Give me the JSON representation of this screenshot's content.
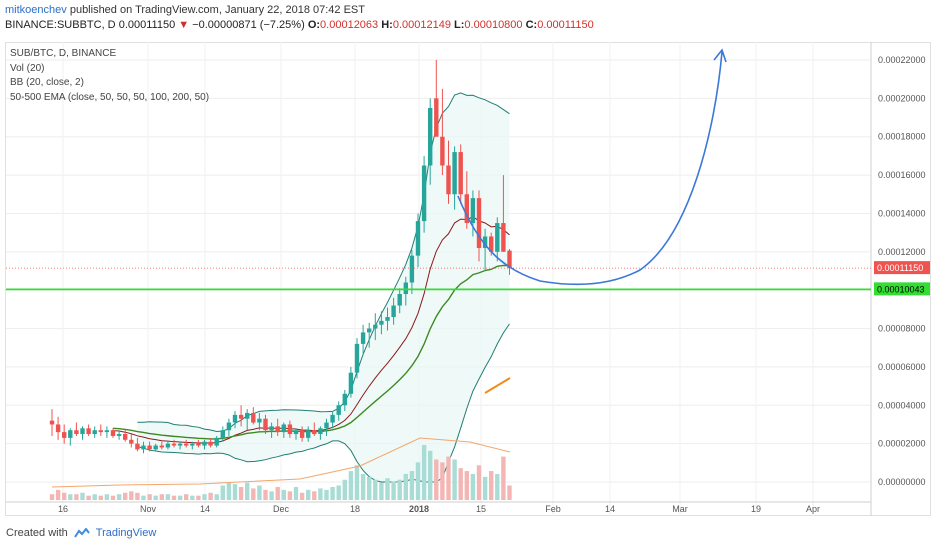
{
  "header": {
    "author": "mitkoenchev",
    "published_text": "published on TradingView.com, January 22, 2018 07:42 EST",
    "symbol": "BINANCE:SUBBTC, D",
    "last": "0.00011150",
    "change_arrow": "▼",
    "change": "−0.00000871 (−7.25%)",
    "open_label": "O:",
    "open": "0.00012063",
    "high_label": "H:",
    "high": "0.00012149",
    "low_label": "L:",
    "low": "0.00010800",
    "close_label": "C:",
    "close": "0.00011150"
  },
  "legend": {
    "l1": "SUB/BTC, D, BINANCE",
    "l2": "Vol (20)",
    "l3": "BB (20, close, 2)",
    "l4": "50-500 EMA (close, 50, 50, 50, 100, 200, 50)"
  },
  "price_badges": {
    "current": "0.00011150",
    "support": "0.00010043"
  },
  "footer": {
    "created_with": "Created with",
    "brand": "TradingView"
  },
  "colors": {
    "up": "#26a69a",
    "down": "#ef5350",
    "support_line": "#33dd33",
    "forecast_arrow": "#3c78d8",
    "current_price": "#ef5350"
  },
  "chart_data": {
    "type": "candlestick",
    "symbol": "SUB/BTC",
    "y_axis": {
      "min": 0.0,
      "max": 0.00022,
      "ticks": [
        "0.00022000",
        "0.00020000",
        "0.00018000",
        "0.00016000",
        "0.00014000",
        "0.00012000",
        "0.00010000",
        "0.00008000",
        "0.00006000",
        "0.00004000",
        "0.00002000",
        "0.00000000"
      ],
      "tick_values": [
        0.00022,
        0.0002,
        0.00018,
        0.00016,
        0.00014,
        0.00012,
        0.0001,
        8e-05,
        6e-05,
        4e-05,
        2e-05,
        0.0
      ]
    },
    "x_ticks": [
      "16",
      "Nov",
      "14",
      "Dec",
      "18",
      "2018",
      "15",
      "Feb",
      "14",
      "Mar",
      "19",
      "Apr"
    ],
    "support_level": 0.00010043,
    "current_price": 0.0001115,
    "candles": [
      [
        3.2e-05,
        3.8e-05,
        2.4e-05,
        3e-05
      ],
      [
        3e-05,
        3.4e-05,
        2.2e-05,
        2.6e-05
      ],
      [
        2.6e-05,
        3e-05,
        2e-05,
        2.3e-05
      ],
      [
        2.3e-05,
        2.8e-05,
        1.9e-05,
        2.7e-05
      ],
      [
        2.7e-05,
        3.1e-05,
        2.4e-05,
        2.5e-05
      ],
      [
        2.5e-05,
        2.9e-05,
        2.2e-05,
        2.8e-05
      ],
      [
        2.8e-05,
        3e-05,
        2.4e-05,
        2.5e-05
      ],
      [
        2.5e-05,
        2.9e-05,
        2.3e-05,
        2.7e-05
      ],
      [
        2.7e-05,
        3e-05,
        2.4e-05,
        2.6e-05
      ],
      [
        2.6e-05,
        2.9e-05,
        2.3e-05,
        2.7e-05
      ],
      [
        2.7e-05,
        2.8e-05,
        2.3e-05,
        2.4e-05
      ],
      [
        2.4e-05,
        2.7e-05,
        2.2e-05,
        2.5e-05
      ],
      [
        2.5e-05,
        2.7e-05,
        2.1e-05,
        2.2e-05
      ],
      [
        2.2e-05,
        2.5e-05,
        1.8e-05,
        2e-05
      ],
      [
        2e-05,
        2.3e-05,
        1.6e-05,
        1.7e-05
      ],
      [
        1.7e-05,
        2.1e-05,
        1.5e-05,
        1.9e-05
      ],
      [
        1.9e-05,
        2.1e-05,
        1.6e-05,
        1.7e-05
      ],
      [
        1.7e-05,
        2e-05,
        1.6e-05,
        1.9e-05
      ],
      [
        1.9e-05,
        2.1e-05,
        1.7e-05,
        1.8e-05
      ],
      [
        1.8e-05,
        2.1e-05,
        1.7e-05,
        2e-05
      ],
      [
        2e-05,
        2.2e-05,
        1.8e-05,
        1.9e-05
      ],
      [
        1.9e-05,
        2.1e-05,
        1.7e-05,
        2e-05
      ],
      [
        2e-05,
        2.2e-05,
        1.8e-05,
        1.9e-05
      ],
      [
        1.9e-05,
        2.1e-05,
        1.7e-05,
        2e-05
      ],
      [
        2e-05,
        2.2e-05,
        1.8e-05,
        1.9e-05
      ],
      [
        1.9e-05,
        2.2e-05,
        1.7e-05,
        2.1e-05
      ],
      [
        2.1e-05,
        2.3e-05,
        1.8e-05,
        1.9e-05
      ],
      [
        1.9e-05,
        2.4e-05,
        1.8e-05,
        2.3e-05
      ],
      [
        2.3e-05,
        2.9e-05,
        2.1e-05,
        2.7e-05
      ],
      [
        2.7e-05,
        3.3e-05,
        2.4e-05,
        3.1e-05
      ],
      [
        3.1e-05,
        3.7e-05,
        2.8e-05,
        3.5e-05
      ],
      [
        3.5e-05,
        4e-05,
        2.9e-05,
        3.3e-05
      ],
      [
        3.3e-05,
        3.8e-05,
        2.7e-05,
        3.6e-05
      ],
      [
        3.6e-05,
        3.9e-05,
        3e-05,
        3.1e-05
      ],
      [
        3.1e-05,
        3.6e-05,
        2.7e-05,
        3.3e-05
      ],
      [
        3.3e-05,
        3.5e-05,
        2.5e-05,
        2.7e-05
      ],
      [
        2.7e-05,
        3.1e-05,
        2.3e-05,
        2.9e-05
      ],
      [
        2.9e-05,
        3.3e-05,
        2.4e-05,
        2.6e-05
      ],
      [
        2.6e-05,
        3.1e-05,
        2.3e-05,
        3e-05
      ],
      [
        3e-05,
        3.2e-05,
        2.3e-05,
        2.5e-05
      ],
      [
        2.5e-05,
        2.8e-05,
        2.2e-05,
        2.7e-05
      ],
      [
        2.7e-05,
        2.9e-05,
        2.1e-05,
        2.3e-05
      ],
      [
        2.3e-05,
        2.9e-05,
        2.1e-05,
        2.7e-05
      ],
      [
        2.7e-05,
        3.1e-05,
        2.4e-05,
        2.5e-05
      ],
      [
        2.5e-05,
        2.9e-05,
        2.2e-05,
        2.8e-05
      ],
      [
        2.8e-05,
        3.3e-05,
        2.4e-05,
        3.1e-05
      ],
      [
        3.1e-05,
        3.7e-05,
        2.8e-05,
        3.5e-05
      ],
      [
        3.5e-05,
        4.2e-05,
        3.2e-05,
        4e-05
      ],
      [
        4e-05,
        4.8e-05,
        3.7e-05,
        4.6e-05
      ],
      [
        4.6e-05,
        6e-05,
        4.4e-05,
        5.7e-05
      ],
      [
        5.7e-05,
        7.5e-05,
        5.4e-05,
        7.2e-05
      ],
      [
        7.2e-05,
        8.2e-05,
        6.6e-05,
        7.8e-05
      ],
      [
        7.8e-05,
        8.3e-05,
        7e-05,
        8e-05
      ],
      [
        8e-05,
        8.8e-05,
        7.4e-05,
        8.2e-05
      ],
      [
        8.2e-05,
        8.9e-05,
        7.7e-05,
        8.4e-05
      ],
      [
        8.4e-05,
        9.1e-05,
        7.9e-05,
        8.6e-05
      ],
      [
        8.6e-05,
        9.6e-05,
        8.2e-05,
        9.2e-05
      ],
      [
        9.2e-05,
        0.000101,
        8.8e-05,
        9.8e-05
      ],
      [
        9.8e-05,
        0.000107,
        9.2e-05,
        0.000104
      ],
      [
        0.000104,
        0.000121,
        9.8e-05,
        0.000118
      ],
      [
        0.000118,
        0.00014,
        0.000112,
        0.000136
      ],
      [
        0.000136,
        0.00017,
        0.00013,
        0.000165
      ],
      [
        0.000165,
        0.0002,
        0.000155,
        0.000195
      ],
      [
        0.0002,
        0.00022,
        0.00018,
        0.00018
      ],
      [
        0.00018,
        0.000205,
        0.00016,
        0.000165
      ],
      [
        0.000165,
        0.000178,
        0.000145,
        0.00015
      ],
      [
        0.00015,
        0.000175,
        0.000142,
        0.000172
      ],
      [
        0.000172,
        0.000176,
        0.000145,
        0.00015
      ],
      [
        0.00015,
        0.000162,
        0.000132,
        0.000135
      ],
      [
        0.000135,
        0.000152,
        0.000128,
        0.000148
      ],
      [
        0.000148,
        0.000152,
        0.000115,
        0.000122
      ],
      [
        0.000122,
        0.000132,
        0.00011,
        0.000128
      ],
      [
        0.000128,
        0.00013,
        0.000118,
        0.00012
      ],
      [
        0.00012,
        0.000138,
        0.000115,
        0.000135
      ],
      [
        0.000135,
        0.00016,
        0.00012,
        0.00012
      ],
      [
        0.00012063,
        0.00012149,
        0.000108,
        0.0001115
      ]
    ],
    "volumes": [
      4,
      7,
      5,
      4,
      4,
      5,
      3,
      4,
      3,
      4,
      3,
      4,
      5,
      6,
      5,
      3,
      4,
      3,
      4,
      4,
      3,
      3,
      4,
      3,
      3,
      4,
      5,
      4,
      10,
      12,
      11,
      9,
      12,
      8,
      10,
      7,
      6,
      9,
      7,
      6,
      9,
      5,
      7,
      6,
      8,
      7,
      9,
      10,
      14,
      20,
      24,
      18,
      16,
      14,
      12,
      15,
      13,
      14,
      18,
      20,
      26,
      38,
      34,
      28,
      26,
      30,
      28,
      22,
      20,
      18,
      24,
      16,
      20,
      18,
      30,
      10
    ],
    "forecast": "curve from current price dipping to ~0.000105 in Feb and rising above 0.00022 by March"
  }
}
